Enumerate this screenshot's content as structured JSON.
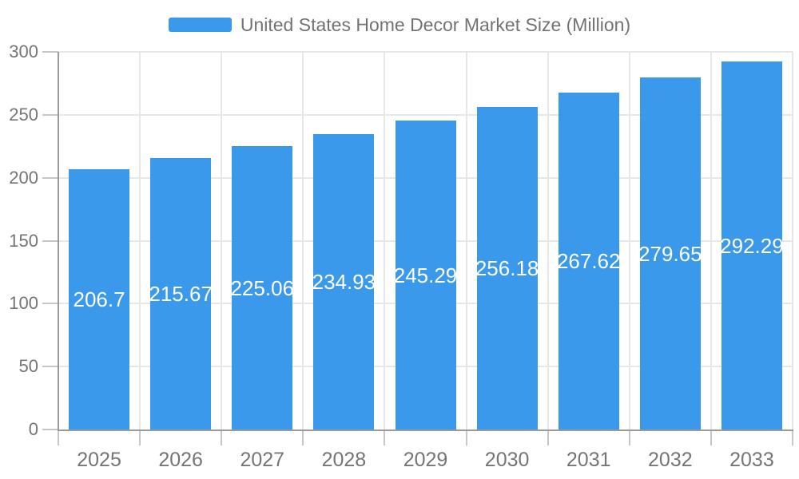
{
  "legend": {
    "label": "United States Home Decor Market Size (Million)"
  },
  "chart_data": {
    "type": "bar",
    "title": "United States Home Decor Market Size (Million)",
    "categories": [
      "2025",
      "2026",
      "2027",
      "2028",
      "2029",
      "2030",
      "2031",
      "2032",
      "2033"
    ],
    "values": [
      206.7,
      215.67,
      225.06,
      234.93,
      245.29,
      256.18,
      267.62,
      279.65,
      292.29
    ],
    "value_labels": [
      "206.7",
      "215.67",
      "225.06",
      "234.93",
      "245.29",
      "256.18",
      "267.62",
      "279.65",
      "292.29"
    ],
    "series_name": "United States Home Decor Market Size (Million)",
    "xlabel": "",
    "ylabel": "",
    "ylim": [
      0,
      300
    ],
    "y_ticks": [
      0,
      50,
      100,
      150,
      200,
      250,
      300
    ],
    "grid": "on",
    "legend_position": "top-center",
    "bar_color": "#3B99EC",
    "bar_label_color": "#ffffff",
    "axis_text_color": "#737577",
    "grid_color": "#E7E7E7",
    "tick_color": "#C6C6C6",
    "axis_line_color": "#9A9A9A",
    "background_color": "#ffffff"
  }
}
